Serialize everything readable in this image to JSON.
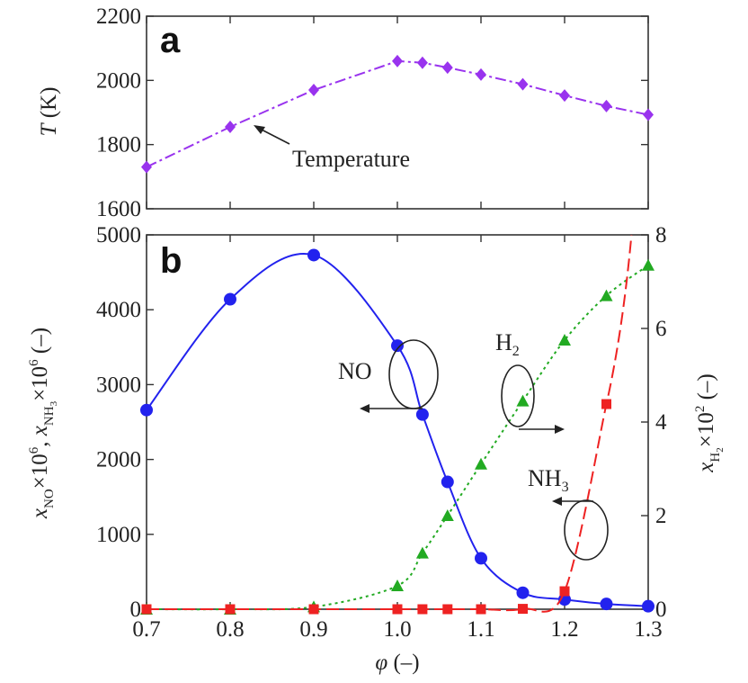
{
  "chart_data": [
    {
      "panel": "a",
      "type": "line",
      "ylabel_var": "T",
      "ylabel_unit": "(K)",
      "xlim": [
        0.7,
        1.3
      ],
      "ylim": [
        1600,
        2200
      ],
      "yticks": [
        1600,
        1800,
        2000,
        2200
      ],
      "grid": false,
      "annotations": [
        {
          "text": "Temperature",
          "x": 0.9,
          "y": 1775
        }
      ],
      "series": [
        {
          "color": "#9933ee",
          "marker": "diamond",
          "style": "dash-dot",
          "x": [
            0.7,
            0.8,
            0.9,
            1.0,
            1.03,
            1.06,
            1.1,
            1.15,
            1.2,
            1.25,
            1.3
          ],
          "y": [
            1730,
            1855,
            1970,
            2060,
            2055,
            2040,
            2018,
            1988,
            1953,
            1920,
            1893
          ]
        }
      ]
    },
    {
      "panel": "b",
      "type": "line",
      "xlabel_var": "φ",
      "xlabel_unit": "(–)",
      "ylabel_left": "x_NO×10^6, x_NH3×10^6 (–)",
      "ylabel_right": "x_H2×10^2 (–)",
      "xlim": [
        0.7,
        1.3
      ],
      "xticks": [
        "0.7",
        "0.8",
        "0.9",
        "1.0",
        "1.1",
        "1.2",
        "1.3"
      ],
      "ylim_left": [
        0,
        5000
      ],
      "yticks_left": [
        0,
        1000,
        2000,
        3000,
        4000,
        5000
      ],
      "ylim_right": [
        0,
        8
      ],
      "yticks_right": [
        0,
        2,
        4,
        6,
        8
      ],
      "grid": false,
      "annotations": [
        {
          "text": "NO",
          "arrow": "left"
        },
        {
          "text": "H2",
          "arrow": "right"
        },
        {
          "text": "NH3",
          "arrow": "left"
        }
      ],
      "series": [
        {
          "label": "NO",
          "axis": "left",
          "color": "#2222ee",
          "marker": "circle",
          "style": "solid",
          "x": [
            0.7,
            0.8,
            0.9,
            1.0,
            1.03,
            1.06,
            1.1,
            1.15,
            1.2,
            1.25,
            1.3
          ],
          "y": [
            2660,
            4140,
            4730,
            3520,
            2600,
            1700,
            680,
            220,
            130,
            70,
            40
          ]
        },
        {
          "label": "H2",
          "axis": "right",
          "color": "#22aa22",
          "marker": "triangle",
          "style": "dotted",
          "x": [
            0.7,
            0.8,
            0.9,
            1.0,
            1.03,
            1.06,
            1.1,
            1.15,
            1.2,
            1.25,
            1.3
          ],
          "y": [
            0.0,
            0.0,
            0.05,
            0.5,
            1.2,
            2.0,
            3.1,
            4.45,
            5.75,
            6.7,
            7.35
          ]
        },
        {
          "label": "NH3",
          "axis": "left",
          "color": "#ee2222",
          "marker": "square",
          "style": "dashed",
          "x": [
            0.7,
            0.8,
            0.9,
            1.0,
            1.03,
            1.06,
            1.1,
            1.15,
            1.2,
            1.25
          ],
          "y": [
            0,
            0,
            0,
            0,
            0,
            0,
            0,
            5,
            240,
            2740
          ]
        }
      ]
    }
  ]
}
